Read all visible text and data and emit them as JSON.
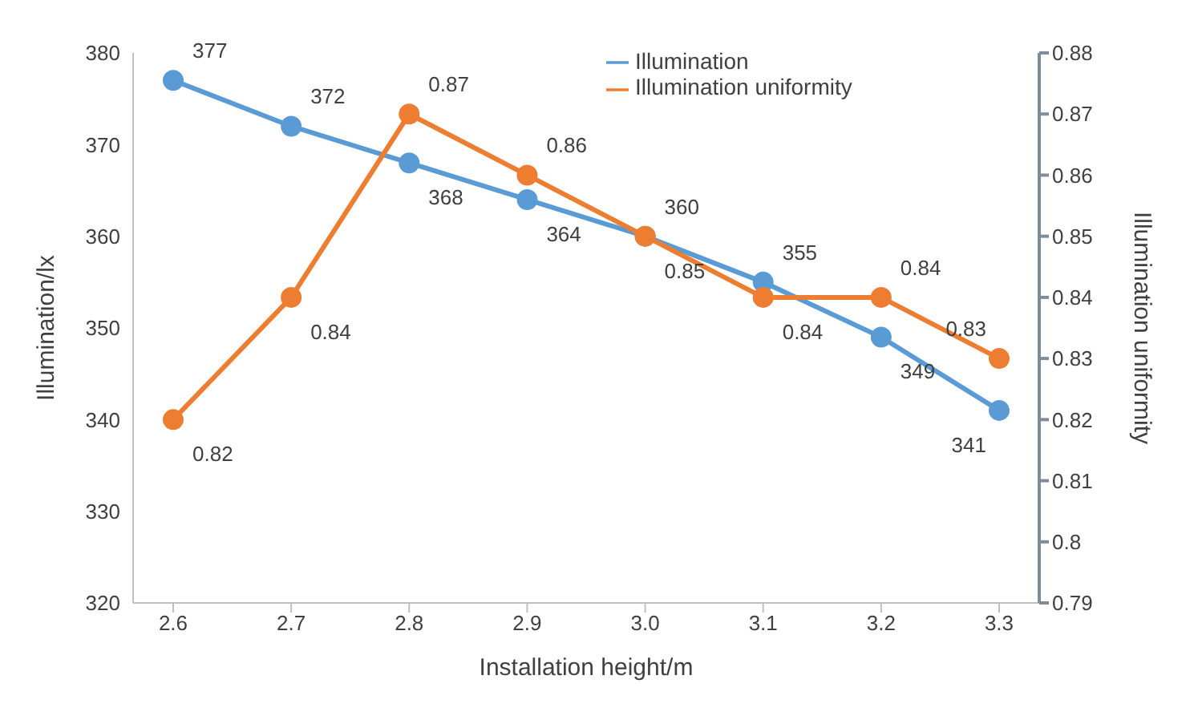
{
  "chart_data": {
    "type": "line",
    "categories": [
      "2.6",
      "2.7",
      "2.8",
      "2.9",
      "3.0",
      "3.1",
      "3.2",
      "3.3"
    ],
    "xlabel": "Installation height/m",
    "ylabel": "Illumination/lx",
    "y2label": "Illumination uniformity",
    "series": [
      {
        "name": "Illumination",
        "color": "#5b9bd5",
        "values": [
          377,
          372,
          368,
          364,
          360,
          355,
          349,
          341
        ]
      },
      {
        "name": "Illumination uniformity",
        "color": "#ed7d31",
        "axis": "y2",
        "values": [
          0.82,
          0.84,
          0.87,
          0.86,
          0.85,
          0.84,
          0.84,
          0.83
        ]
      }
    ],
    "ylim": [
      320,
      380
    ],
    "yticks": [
      320,
      330,
      340,
      350,
      360,
      370,
      380
    ],
    "y2lim": [
      0.79,
      0.88
    ],
    "y2ticks": [
      0.79,
      0.8,
      0.81,
      0.82,
      0.83,
      0.84,
      0.85,
      0.86,
      0.87,
      0.88
    ],
    "data_labels": true,
    "legend": "top right",
    "marker": "circle",
    "line_style": "solid",
    "grid": false
  }
}
